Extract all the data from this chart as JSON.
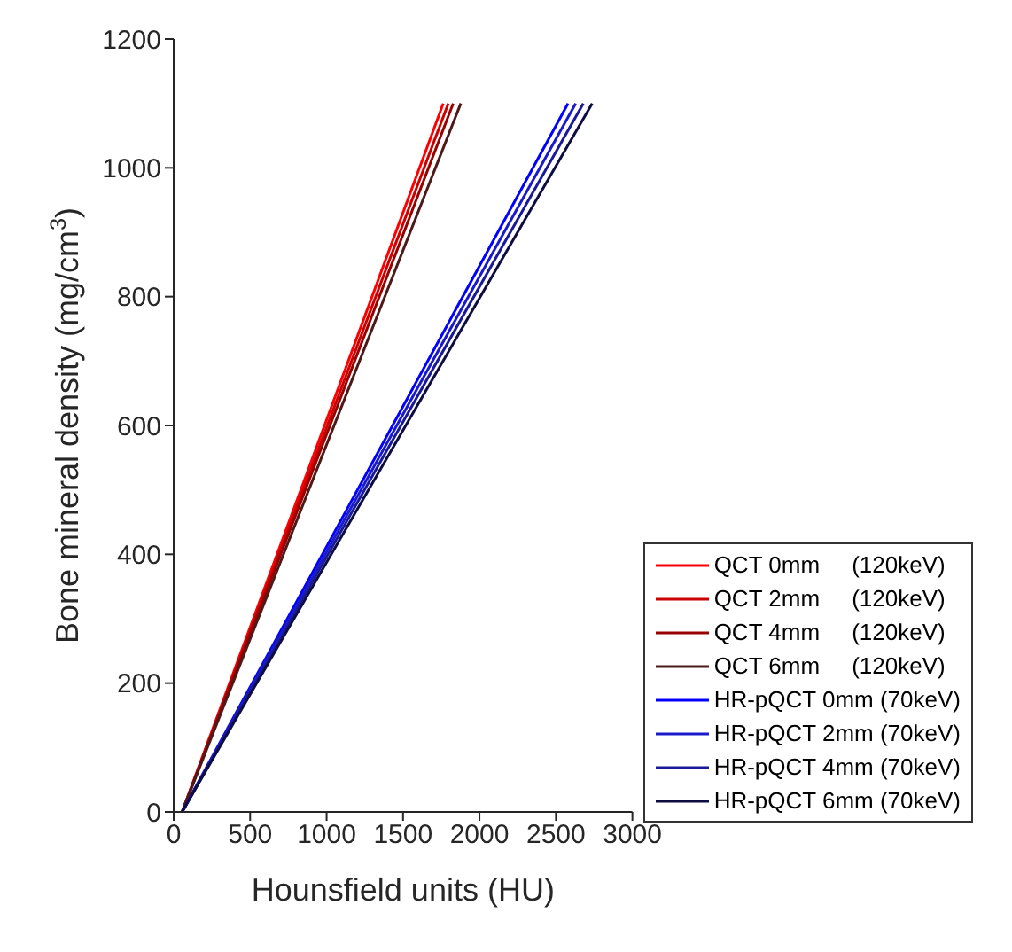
{
  "chart_data": {
    "type": "line",
    "xlabel": "Hounsfield units (HU)",
    "ylabel": "Bone mineral density (mg/cm$^{3}$)",
    "xlim": [
      0,
      3000
    ],
    "xticks": [
      0,
      500,
      1000,
      1500,
      2000,
      2500,
      3000
    ],
    "ylim": [
      0,
      1200
    ],
    "yticks": [
      0,
      200,
      400,
      600,
      800,
      1000,
      1200
    ],
    "grid": false,
    "legend": "bottom right",
    "marker": "none",
    "line_style": "solid",
    "series": [
      {
        "name": "QCT 0mm     (120keV)",
        "color": "#ff0000",
        "x": [
          55,
          1763
        ],
        "values": [
          0,
          1100
        ]
      },
      {
        "name": "QCT 2mm     (120keV)",
        "color": "#cc0000",
        "x": [
          55,
          1796
        ],
        "values": [
          0,
          1100
        ]
      },
      {
        "name": "QCT 4mm     (120keV)",
        "color": "#990000",
        "x": [
          55,
          1828
        ],
        "values": [
          0,
          1100
        ]
      },
      {
        "name": "QCT 6mm     (120keV)",
        "color": "#4d1a1a",
        "x": [
          55,
          1878
        ],
        "values": [
          0,
          1100
        ]
      },
      {
        "name": "HR-pQCT 0mm (70keV)",
        "color": "#0000ff",
        "x": [
          55,
          2579
        ],
        "values": [
          0,
          1100
        ]
      },
      {
        "name": "HR-pQCT 2mm (70keV)",
        "color": "#1a1acc",
        "x": [
          55,
          2629
        ],
        "values": [
          0,
          1100
        ]
      },
      {
        "name": "HR-pQCT 4mm (70keV)",
        "color": "#1a1a99",
        "x": [
          55,
          2679
        ],
        "values": [
          0,
          1100
        ]
      },
      {
        "name": "HR-pQCT 6mm (70keV)",
        "color": "#0d0d40",
        "x": [
          55,
          2737
        ],
        "values": [
          0,
          1100
        ]
      }
    ]
  }
}
